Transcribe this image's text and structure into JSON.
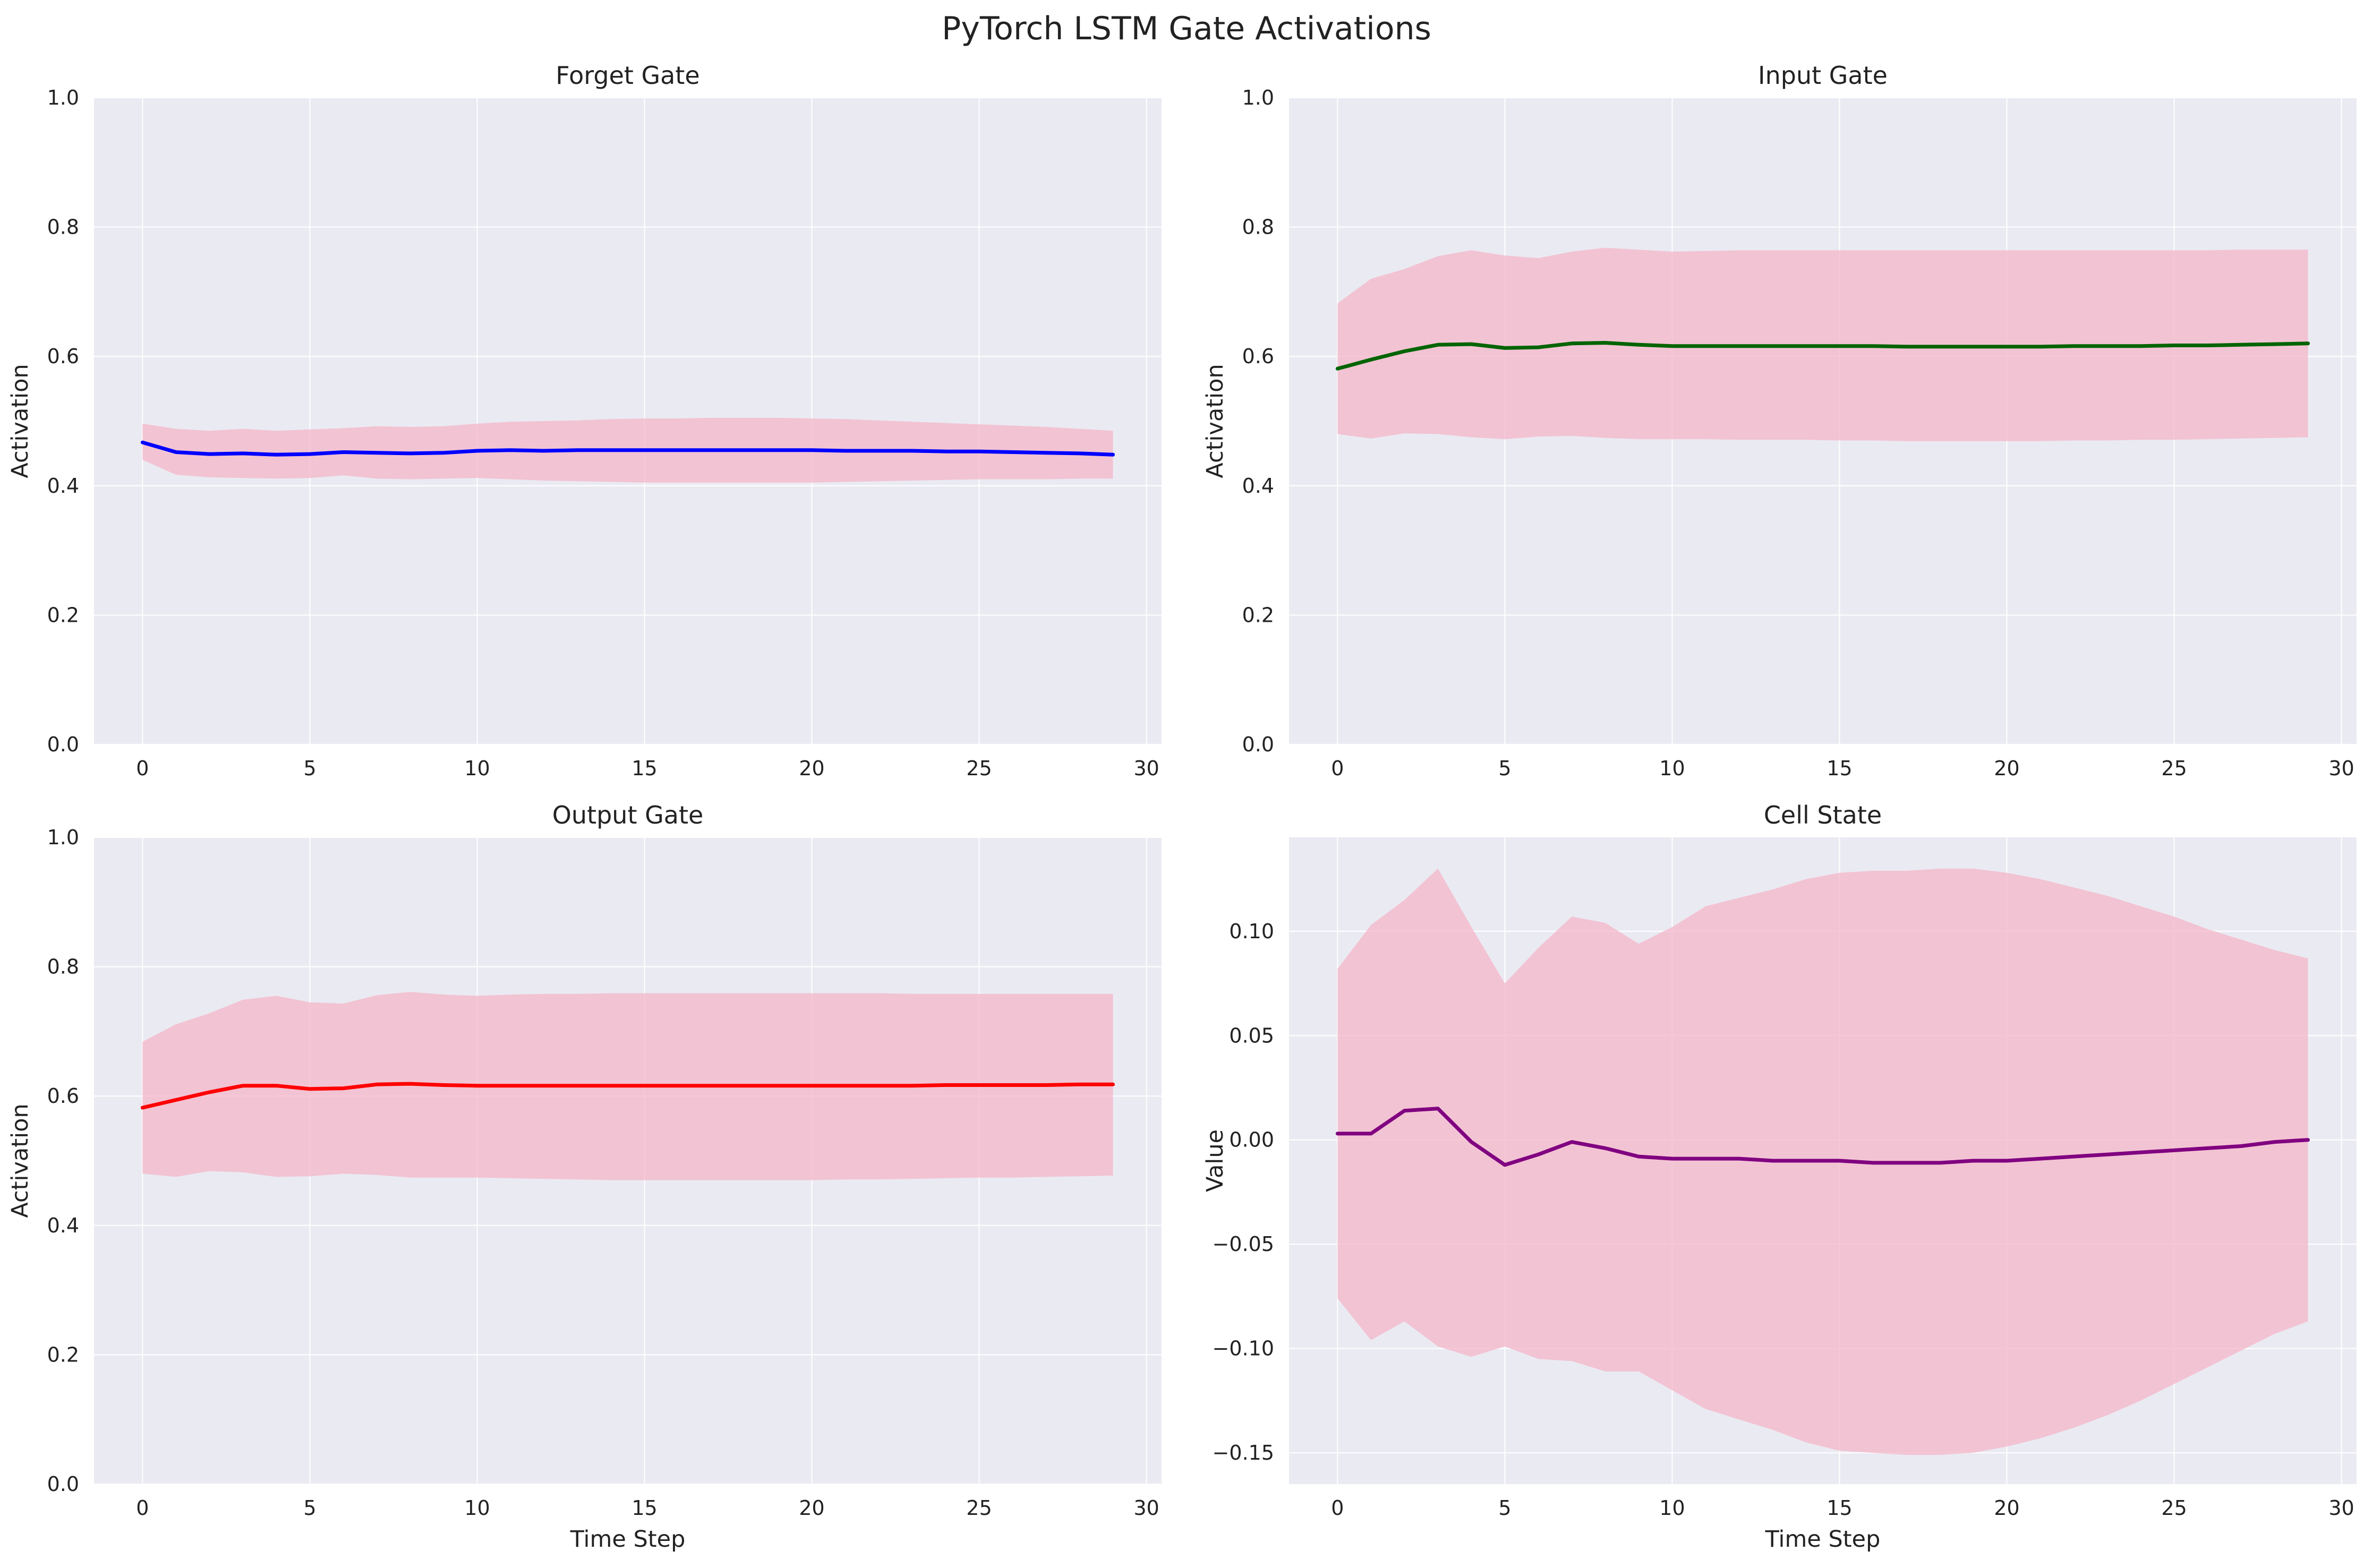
{
  "figure": {
    "title": "PyTorch LSTM Gate Activations",
    "background": "#ffffff",
    "axes_background": "#eaeaf2",
    "grid_color": "#ffffff",
    "band_color": "#f4b6c8"
  },
  "chart_data": [
    {
      "type": "line",
      "title": "Forget Gate",
      "xlabel": "",
      "ylabel": "Activation",
      "xlim": [
        -1.45,
        30.45
      ],
      "ylim": [
        0,
        1
      ],
      "xticks": [
        "0",
        "5",
        "10",
        "15",
        "20",
        "25",
        "30"
      ],
      "yticks": [
        "0.0",
        "0.2",
        "0.4",
        "0.6",
        "0.8",
        "1.0"
      ],
      "grid": true,
      "line_color": "#0000ff",
      "x": [
        0,
        1,
        2,
        3,
        4,
        5,
        6,
        7,
        8,
        9,
        10,
        11,
        12,
        13,
        14,
        15,
        16,
        17,
        18,
        19,
        20,
        21,
        22,
        23,
        24,
        25,
        26,
        27,
        28,
        29
      ],
      "series": [
        {
          "values": [
            0.467,
            0.452,
            0.449,
            0.45,
            0.448,
            0.449,
            0.452,
            0.451,
            0.45,
            0.451,
            0.454,
            0.455,
            0.454,
            0.455,
            0.455,
            0.455,
            0.455,
            0.455,
            0.455,
            0.455,
            0.455,
            0.454,
            0.454,
            0.454,
            0.453,
            0.453,
            0.452,
            0.451,
            0.45,
            0.448
          ],
          "band_upper": [
            0.496,
            0.488,
            0.485,
            0.488,
            0.485,
            0.487,
            0.489,
            0.492,
            0.491,
            0.492,
            0.496,
            0.499,
            0.5,
            0.501,
            0.503,
            0.504,
            0.504,
            0.505,
            0.505,
            0.505,
            0.504,
            0.503,
            0.501,
            0.499,
            0.497,
            0.495,
            0.493,
            0.491,
            0.488,
            0.485
          ],
          "band_lower": [
            0.44,
            0.417,
            0.413,
            0.412,
            0.411,
            0.412,
            0.416,
            0.411,
            0.41,
            0.411,
            0.412,
            0.41,
            0.408,
            0.407,
            0.406,
            0.405,
            0.405,
            0.405,
            0.405,
            0.405,
            0.405,
            0.406,
            0.407,
            0.408,
            0.409,
            0.41,
            0.41,
            0.41,
            0.411,
            0.411
          ]
        }
      ]
    },
    {
      "type": "line",
      "title": "Input Gate",
      "xlabel": "",
      "ylabel": "Activation",
      "xlim": [
        -1.45,
        30.45
      ],
      "ylim": [
        0,
        1
      ],
      "xticks": [
        "0",
        "5",
        "10",
        "15",
        "20",
        "25",
        "30"
      ],
      "yticks": [
        "0.0",
        "0.2",
        "0.4",
        "0.6",
        "0.8",
        "1.0"
      ],
      "grid": true,
      "line_color": "#006400",
      "x": [
        0,
        1,
        2,
        3,
        4,
        5,
        6,
        7,
        8,
        9,
        10,
        11,
        12,
        13,
        14,
        15,
        16,
        17,
        18,
        19,
        20,
        21,
        22,
        23,
        24,
        25,
        26,
        27,
        28,
        29
      ],
      "series": [
        {
          "values": [
            0.581,
            0.595,
            0.608,
            0.618,
            0.619,
            0.613,
            0.614,
            0.62,
            0.621,
            0.618,
            0.616,
            0.616,
            0.616,
            0.616,
            0.616,
            0.616,
            0.616,
            0.615,
            0.615,
            0.615,
            0.615,
            0.615,
            0.616,
            0.616,
            0.616,
            0.617,
            0.617,
            0.618,
            0.619,
            0.62
          ],
          "band_upper": [
            0.682,
            0.72,
            0.735,
            0.755,
            0.764,
            0.756,
            0.752,
            0.762,
            0.768,
            0.765,
            0.762,
            0.763,
            0.764,
            0.764,
            0.764,
            0.764,
            0.764,
            0.764,
            0.764,
            0.764,
            0.764,
            0.764,
            0.764,
            0.764,
            0.764,
            0.764,
            0.764,
            0.765,
            0.765,
            0.765
          ],
          "band_lower": [
            0.48,
            0.473,
            0.481,
            0.48,
            0.475,
            0.472,
            0.476,
            0.477,
            0.474,
            0.472,
            0.472,
            0.472,
            0.471,
            0.471,
            0.471,
            0.47,
            0.47,
            0.469,
            0.469,
            0.469,
            0.469,
            0.469,
            0.47,
            0.47,
            0.471,
            0.471,
            0.472,
            0.473,
            0.474,
            0.475
          ]
        }
      ]
    },
    {
      "type": "line",
      "title": "Output Gate",
      "xlabel": "Time Step",
      "ylabel": "Activation",
      "xlim": [
        -1.45,
        30.45
      ],
      "ylim": [
        0,
        1
      ],
      "xticks": [
        "0",
        "5",
        "10",
        "15",
        "20",
        "25",
        "30"
      ],
      "yticks": [
        "0.0",
        "0.2",
        "0.4",
        "0.6",
        "0.8",
        "1.0"
      ],
      "grid": true,
      "line_color": "#ff0000",
      "x": [
        0,
        1,
        2,
        3,
        4,
        5,
        6,
        7,
        8,
        9,
        10,
        11,
        12,
        13,
        14,
        15,
        16,
        17,
        18,
        19,
        20,
        21,
        22,
        23,
        24,
        25,
        26,
        27,
        28,
        29
      ],
      "series": [
        {
          "values": [
            0.582,
            0.594,
            0.606,
            0.616,
            0.616,
            0.611,
            0.612,
            0.618,
            0.619,
            0.617,
            0.616,
            0.616,
            0.616,
            0.616,
            0.616,
            0.616,
            0.616,
            0.616,
            0.616,
            0.616,
            0.616,
            0.616,
            0.616,
            0.616,
            0.617,
            0.617,
            0.617,
            0.617,
            0.618,
            0.618
          ],
          "band_upper": [
            0.684,
            0.711,
            0.728,
            0.749,
            0.755,
            0.745,
            0.743,
            0.756,
            0.761,
            0.757,
            0.755,
            0.757,
            0.758,
            0.758,
            0.759,
            0.759,
            0.759,
            0.759,
            0.759,
            0.759,
            0.759,
            0.759,
            0.759,
            0.758,
            0.758,
            0.758,
            0.758,
            0.758,
            0.758,
            0.758
          ],
          "band_lower": [
            0.48,
            0.475,
            0.484,
            0.482,
            0.475,
            0.476,
            0.48,
            0.478,
            0.474,
            0.474,
            0.474,
            0.473,
            0.472,
            0.471,
            0.47,
            0.47,
            0.47,
            0.47,
            0.47,
            0.47,
            0.47,
            0.471,
            0.471,
            0.472,
            0.473,
            0.474,
            0.474,
            0.475,
            0.476,
            0.477
          ]
        }
      ]
    },
    {
      "type": "line",
      "title": "Cell State",
      "xlabel": "Time Step",
      "ylabel": "Value",
      "xlim": [
        -1.45,
        30.45
      ],
      "ylim": [
        -0.165,
        0.145
      ],
      "xticks": [
        "0",
        "5",
        "10",
        "15",
        "20",
        "25",
        "30"
      ],
      "yticks": [
        "−0.15",
        "−0.10",
        "−0.05",
        "0.00",
        "0.05",
        "0.10"
      ],
      "grid": true,
      "line_color": "#800080",
      "x": [
        0,
        1,
        2,
        3,
        4,
        5,
        6,
        7,
        8,
        9,
        10,
        11,
        12,
        13,
        14,
        15,
        16,
        17,
        18,
        19,
        20,
        21,
        22,
        23,
        24,
        25,
        26,
        27,
        28,
        29
      ],
      "series": [
        {
          "values": [
            0.003,
            0.003,
            0.014,
            0.015,
            -0.001,
            -0.012,
            -0.007,
            -0.001,
            -0.004,
            -0.008,
            -0.009,
            -0.009,
            -0.009,
            -0.01,
            -0.01,
            -0.01,
            -0.011,
            -0.011,
            -0.011,
            -0.01,
            -0.01,
            -0.009,
            -0.008,
            -0.007,
            -0.006,
            -0.005,
            -0.004,
            -0.003,
            -0.001,
            0.0
          ],
          "band_upper": [
            0.082,
            0.103,
            0.115,
            0.13,
            0.102,
            0.075,
            0.092,
            0.107,
            0.104,
            0.094,
            0.102,
            0.112,
            0.116,
            0.12,
            0.125,
            0.128,
            0.129,
            0.129,
            0.13,
            0.13,
            0.128,
            0.125,
            0.121,
            0.117,
            0.112,
            0.107,
            0.101,
            0.096,
            0.091,
            0.087
          ],
          "band_lower": [
            -0.076,
            -0.096,
            -0.087,
            -0.099,
            -0.104,
            -0.099,
            -0.105,
            -0.106,
            -0.111,
            -0.111,
            -0.12,
            -0.129,
            -0.134,
            -0.139,
            -0.145,
            -0.149,
            -0.15,
            -0.151,
            -0.151,
            -0.15,
            -0.147,
            -0.143,
            -0.138,
            -0.132,
            -0.125,
            -0.117,
            -0.109,
            -0.101,
            -0.093,
            -0.087
          ]
        }
      ]
    }
  ]
}
